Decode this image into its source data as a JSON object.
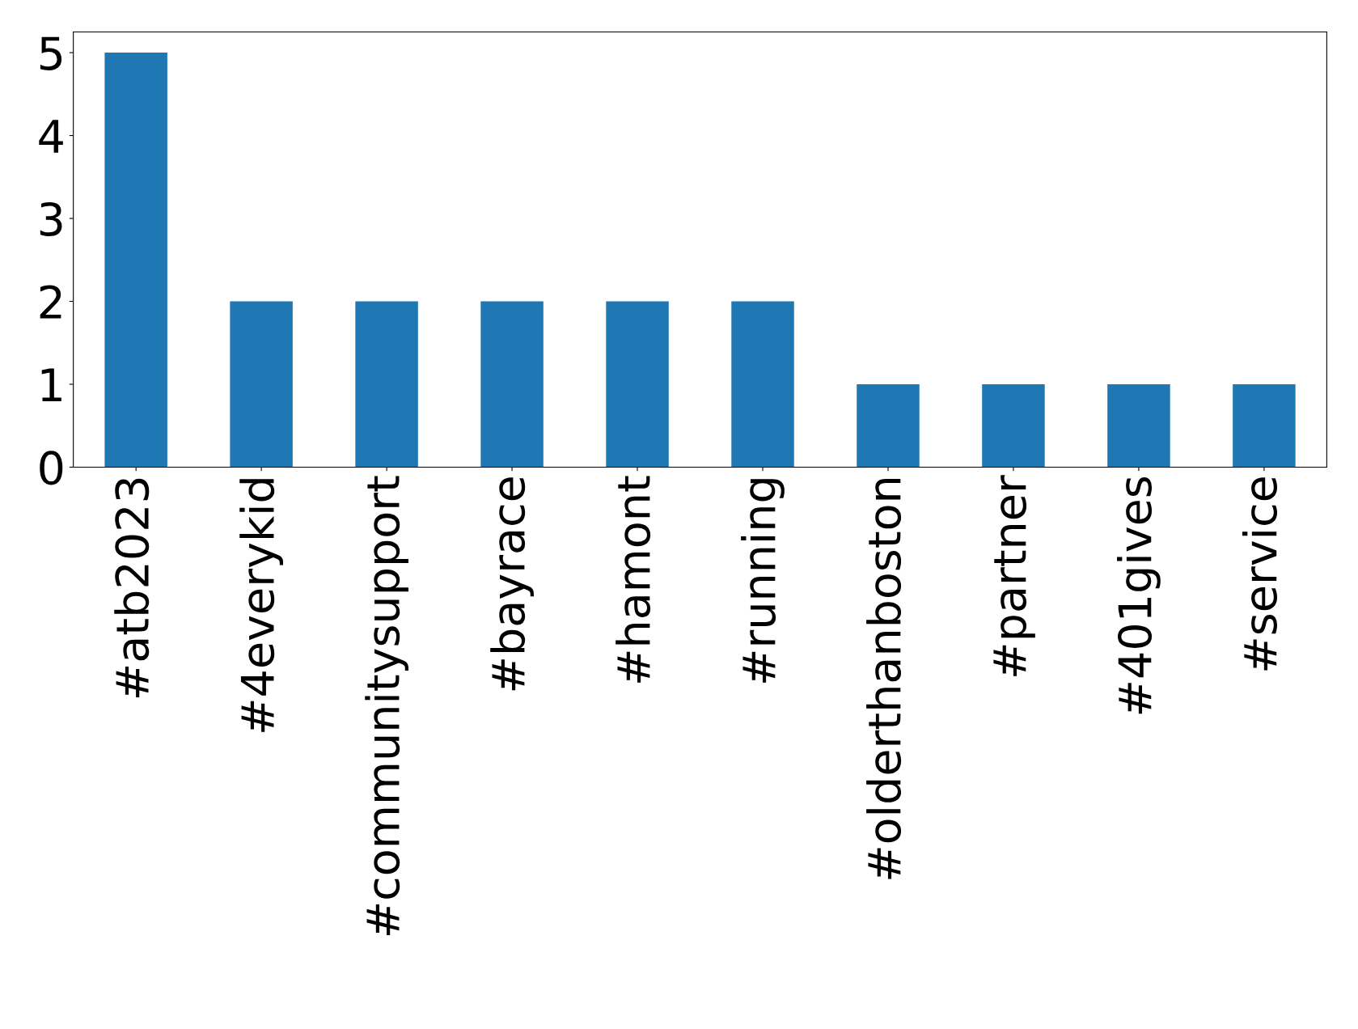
{
  "chart_data": {
    "type": "bar",
    "categories": [
      "#atb2023",
      "#4everykid",
      "#communitysupport",
      "#bayrace",
      "#hamont",
      "#running",
      "#olderthanboston",
      "#partner",
      "#401gives",
      "#service"
    ],
    "values": [
      5,
      2,
      2,
      2,
      2,
      2,
      1,
      1,
      1,
      1
    ],
    "color": "#1f77b4",
    "ylim": [
      0,
      5.25
    ],
    "yticks": [
      0,
      1,
      2,
      3,
      4,
      5
    ],
    "grid": false,
    "legend": false
  }
}
